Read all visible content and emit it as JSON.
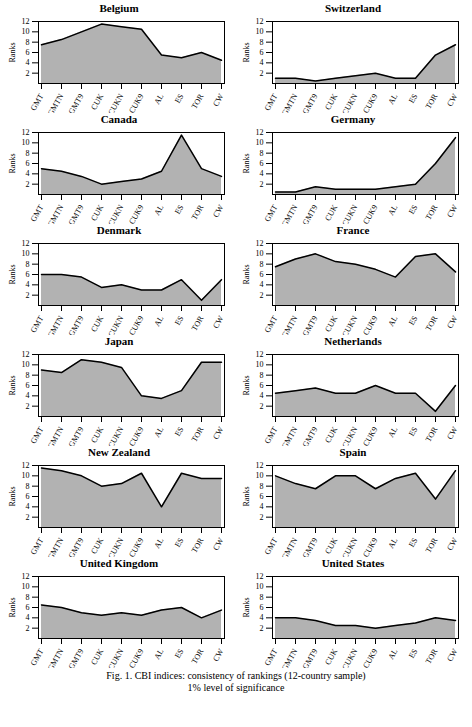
{
  "chart_data": [
    {
      "type": "area",
      "title": "Belgium",
      "ylabel": "Ranks",
      "categories": [
        "GMT",
        "GMTN",
        "GMT9",
        "CUK",
        "CUKN",
        "CUK9",
        "AL",
        "ES",
        "TOR",
        "CW"
      ],
      "values": [
        7.5,
        8.5,
        10.0,
        11.5,
        11.0,
        10.5,
        5.5,
        5.0,
        6.0,
        4.5
      ],
      "ylim": [
        0,
        12
      ],
      "yticks": [
        2,
        4,
        6,
        8,
        10,
        12
      ]
    },
    {
      "type": "area",
      "title": "Switzerland",
      "ylabel": "Ranks",
      "categories": [
        "GMT",
        "GMTN",
        "GMT9",
        "CUK",
        "CUKN",
        "CUK9",
        "AL",
        "ES",
        "TOR",
        "CW"
      ],
      "values": [
        1.0,
        1.0,
        0.5,
        1.0,
        1.5,
        2.0,
        1.0,
        1.0,
        5.5,
        7.5
      ],
      "ylim": [
        0,
        12
      ],
      "yticks": [
        2,
        4,
        6,
        8,
        10,
        12
      ]
    },
    {
      "type": "area",
      "title": "Canada",
      "ylabel": "Ranks",
      "categories": [
        "GMT",
        "GMTN",
        "GMT9",
        "CUK",
        "CUKN",
        "CUK9",
        "AL",
        "ES",
        "TOR",
        "CW"
      ],
      "values": [
        5.0,
        4.5,
        3.5,
        2.0,
        2.5,
        3.0,
        4.5,
        11.5,
        5.0,
        3.5
      ],
      "ylim": [
        0,
        12
      ],
      "yticks": [
        2,
        4,
        6,
        8,
        10,
        12
      ]
    },
    {
      "type": "area",
      "title": "Germany",
      "ylabel": "Ranks",
      "categories": [
        "GMT",
        "GMTN",
        "GMT9",
        "CUK",
        "CUKN",
        "CUK9",
        "AL",
        "ES",
        "TOR",
        "CW"
      ],
      "values": [
        0.5,
        0.5,
        1.5,
        1.0,
        1.0,
        1.0,
        1.5,
        2.0,
        6.0,
        11.0
      ],
      "ylim": [
        0,
        12
      ],
      "yticks": [
        2,
        4,
        6,
        8,
        10,
        12
      ]
    },
    {
      "type": "area",
      "title": "Denmark",
      "ylabel": "Ranks",
      "categories": [
        "GMT",
        "GMTN",
        "GMT9",
        "CUK",
        "CUKN",
        "CUK9",
        "AL",
        "ES",
        "TOR",
        "CW"
      ],
      "values": [
        6.0,
        6.0,
        5.5,
        3.5,
        4.0,
        3.0,
        3.0,
        5.0,
        1.0,
        5.0
      ],
      "ylim": [
        0,
        12
      ],
      "yticks": [
        2,
        4,
        6,
        8,
        10,
        12
      ]
    },
    {
      "type": "area",
      "title": "France",
      "ylabel": "Ranks",
      "categories": [
        "GMT",
        "GMTN",
        "GMT9",
        "CUK",
        "CUKN",
        "CUK9",
        "AL",
        "ES",
        "TOR",
        "CW"
      ],
      "values": [
        7.5,
        9.0,
        10.0,
        8.5,
        8.0,
        7.0,
        5.5,
        9.5,
        10.0,
        6.5
      ],
      "ylim": [
        0,
        12
      ],
      "yticks": [
        2,
        4,
        6,
        8,
        10,
        12
      ]
    },
    {
      "type": "area",
      "title": "Japan",
      "ylabel": "Ranks",
      "categories": [
        "GMT",
        "GMTN",
        "GMT9",
        "CUK",
        "CUKN",
        "CUK9",
        "AL",
        "ES",
        "TOR",
        "CW"
      ],
      "values": [
        9.0,
        8.5,
        11.0,
        10.5,
        9.5,
        4.0,
        3.5,
        5.0,
        10.5,
        10.5
      ],
      "ylim": [
        0,
        12
      ],
      "yticks": [
        2,
        4,
        6,
        8,
        10,
        12
      ]
    },
    {
      "type": "area",
      "title": "Netherlands",
      "ylabel": "Ranks",
      "categories": [
        "GMT",
        "GMTN",
        "GMT9",
        "CUK",
        "CUKN",
        "CUK9",
        "AL",
        "ES",
        "TOR",
        "CW"
      ],
      "values": [
        4.5,
        5.0,
        5.5,
        4.5,
        4.5,
        6.0,
        4.5,
        4.5,
        1.0,
        6.0
      ],
      "ylim": [
        0,
        12
      ],
      "yticks": [
        2,
        4,
        6,
        8,
        10,
        12
      ]
    },
    {
      "type": "area",
      "title": "New Zealand",
      "ylabel": "Ranks",
      "categories": [
        "GMT",
        "GMTN",
        "GMT9",
        "CUK",
        "CUKN",
        "CUK9",
        "AL",
        "ES",
        "TOR",
        "CW"
      ],
      "values": [
        11.5,
        11.0,
        10.0,
        8.0,
        8.5,
        10.5,
        4.0,
        10.5,
        9.5,
        9.5
      ],
      "ylim": [
        0,
        12
      ],
      "yticks": [
        2,
        4,
        6,
        8,
        10,
        12
      ]
    },
    {
      "type": "area",
      "title": "Spain",
      "ylabel": "Ranks",
      "categories": [
        "GMT",
        "GMTN",
        "GMT9",
        "CUK",
        "CUKN",
        "CUK9",
        "AL",
        "ES",
        "TOR",
        "CW"
      ],
      "values": [
        10.0,
        8.5,
        7.5,
        10.0,
        10.0,
        7.5,
        9.5,
        10.5,
        5.5,
        11.0
      ],
      "ylim": [
        0,
        12
      ],
      "yticks": [
        2,
        4,
        6,
        8,
        10,
        12
      ]
    },
    {
      "type": "area",
      "title": "United Kingdom",
      "ylabel": "Ranks",
      "categories": [
        "GMT",
        "GMTN",
        "GMT9",
        "CUK",
        "CUKN",
        "CUK9",
        "AL",
        "ES",
        "TOR",
        "CW"
      ],
      "values": [
        6.5,
        6.0,
        5.0,
        4.5,
        5.0,
        4.5,
        5.5,
        6.0,
        4.0,
        5.5
      ],
      "ylim": [
        0,
        12
      ],
      "yticks": [
        2,
        4,
        6,
        8,
        10,
        12
      ]
    },
    {
      "type": "area",
      "title": "United States",
      "ylabel": "Ranks",
      "categories": [
        "GMT",
        "GMTN",
        "GMT9",
        "CUK",
        "CUKN",
        "CUK9",
        "AL",
        "ES",
        "TOR",
        "CW"
      ],
      "values": [
        4.0,
        4.0,
        3.5,
        2.5,
        2.5,
        2.0,
        2.5,
        3.0,
        4.0,
        3.5
      ],
      "ylim": [
        0,
        12
      ],
      "yticks": [
        2,
        4,
        6,
        8,
        10,
        12
      ]
    }
  ],
  "captions": [
    "Fig. 1.  CBI indices: consistency of rankings (12-country sample)",
    "1% level of significance"
  ]
}
